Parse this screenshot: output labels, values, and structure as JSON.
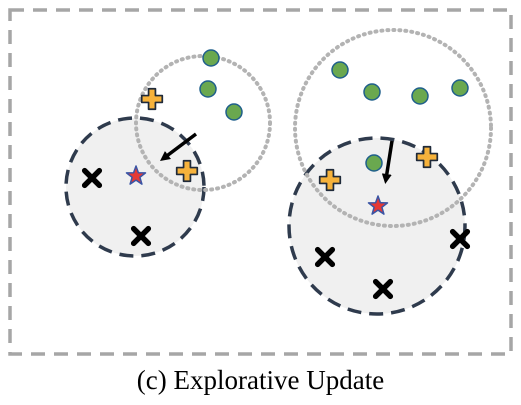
{
  "caption": "(c) Explorative Update",
  "colors": {
    "frame": "#a6a6a6",
    "cluster_region_fill": "#f0f0f0",
    "cluster_region_border": "#2f3b4d",
    "candidate_region_border": "#b3b3b3",
    "green_point_fill": "#6aa84f",
    "green_point_border": "#1f5f8b",
    "plus_fill": "#f6b23b",
    "plus_border": "#1f2a3a",
    "cross_fill": "#000000",
    "star_fill": "#e53935",
    "star_border": "#3a55a5",
    "arrow": "#000000"
  },
  "icons": {
    "green_point": "circle-marker",
    "plus": "plus-marker",
    "cross": "x-marker",
    "star": "star-centroid",
    "arrow": "update-arrow"
  },
  "marker_counts": {
    "left_group": {
      "crosses": 2,
      "pluses": 2,
      "green_points": 3,
      "stars": 1
    },
    "right_group": {
      "crosses": 3,
      "pluses": 2,
      "green_points": 5,
      "stars": 1
    }
  }
}
